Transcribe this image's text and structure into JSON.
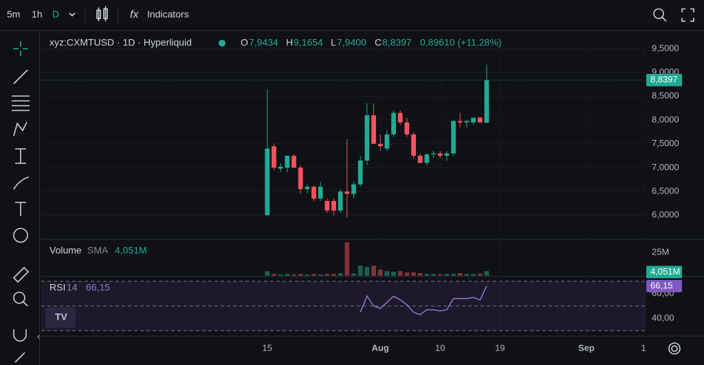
{
  "toolbar": {
    "intervals": [
      "5m",
      "1h",
      "D"
    ],
    "indicators": "Indicators"
  },
  "legend": {
    "symbol": "xyz:CXMTUSD · 1D · Hyperliquid",
    "o_key": "O",
    "o": "7,9434",
    "h_key": "H",
    "h": "9,1654",
    "l_key": "L",
    "l": "7,9400",
    "c_key": "C",
    "change": "0,89610 (+11,28%)"
  },
  "chart_data": {
    "type": "candlestick",
    "x": [
      0,
      1,
      2,
      3,
      4,
      5,
      6,
      7,
      8,
      9,
      10,
      11,
      12,
      13,
      14,
      15,
      16,
      17,
      18,
      19,
      20,
      21,
      22,
      23,
      24,
      25,
      26,
      27,
      28,
      29,
      30,
      31,
      32,
      33
    ],
    "xlim": [
      -34,
      57
    ],
    "xticks": [
      {
        "value": 0,
        "label": "15"
      },
      {
        "value": 17,
        "label": "Aug"
      },
      {
        "value": 26,
        "label": "10"
      },
      {
        "value": 35,
        "label": "19"
      },
      {
        "value": 48,
        "label": "Sep"
      },
      {
        "value": 56.6,
        "label": "1"
      }
    ],
    "open": [
      6.0,
      7.45,
      6.98,
      7.0,
      7.25,
      7.0,
      6.55,
      6.6,
      6.35,
      6.3,
      6.3,
      6.1,
      6.5,
      6.45,
      6.65,
      7.15,
      8.1,
      7.5,
      7.4,
      7.7,
      8.15,
      7.95,
      7.7,
      7.25,
      7.1,
      7.28,
      7.3,
      7.25,
      7.3,
      7.98,
      7.95,
      7.95,
      8.05,
      7.9434
    ],
    "high": [
      8.65,
      7.5,
      7.1,
      7.25,
      7.28,
      7.05,
      6.65,
      6.62,
      6.7,
      6.35,
      6.35,
      6.55,
      7.6,
      6.7,
      7.25,
      8.35,
      8.35,
      7.7,
      7.8,
      8.2,
      8.2,
      8.05,
      7.75,
      7.3,
      7.3,
      7.35,
      7.35,
      7.35,
      8.0,
      8.15,
      8.0,
      8.05,
      8.07,
      9.1654
    ],
    "low": [
      6.0,
      6.95,
      6.9,
      6.9,
      7.0,
      6.45,
      6.45,
      6.3,
      6.3,
      6.05,
      6.0,
      6.05,
      5.95,
      6.35,
      6.6,
      7.05,
      7.5,
      7.35,
      7.35,
      7.65,
      7.9,
      7.65,
      7.2,
      7.1,
      7.05,
      7.2,
      7.2,
      7.15,
      7.25,
      7.85,
      7.85,
      7.9,
      7.93,
      7.94
    ],
    "close": [
      7.4,
      7.0,
      7.02,
      7.25,
      7.0,
      6.55,
      6.6,
      6.35,
      6.6,
      6.1,
      6.1,
      6.5,
      6.45,
      6.65,
      7.15,
      8.1,
      7.5,
      7.45,
      7.7,
      8.15,
      7.95,
      7.7,
      7.25,
      7.1,
      7.28,
      7.3,
      7.25,
      7.3,
      7.98,
      7.95,
      7.98,
      8.05,
      7.95,
      8.8397
    ],
    "up_color": "#22ab94",
    "down_color": "#f7525f",
    "ylim": [
      5.55,
      9.83
    ],
    "yticks": [
      {
        "value": 9.5,
        "label": "9,5000"
      },
      {
        "value": 9.0,
        "label": "9,0000"
      },
      {
        "value": 8.5,
        "label": "8,5000"
      },
      {
        "value": 8.0,
        "label": "8,0000"
      },
      {
        "value": 7.5,
        "label": "7,5000"
      },
      {
        "value": 7.0,
        "label": "7,0000"
      },
      {
        "value": 6.5,
        "label": "6,5000"
      },
      {
        "value": 6.0,
        "label": "6,0000"
      }
    ],
    "last_price": {
      "value": 8.8397,
      "label": "8,8397"
    },
    "volume": {
      "name": "Volume",
      "sma_label": "SMA",
      "sma": {
        "value": 4.051,
        "label": "4,051M"
      },
      "values": [
        5,
        2,
        1.5,
        2,
        1.5,
        2,
        1.5,
        2,
        1.5,
        2,
        2,
        3,
        36,
        2.5,
        11,
        9.5,
        11,
        6.6,
        5,
        4.4,
        5,
        3.7,
        3.7,
        3,
        2,
        2,
        1.5,
        2,
        2,
        3,
        2,
        2,
        2.5,
        5
      ],
      "ylim": [
        0,
        36.8
      ],
      "yticks": [
        {
          "value": 25,
          "label": "25M"
        }
      ]
    },
    "rsi": {
      "name": "RSI",
      "length": 14,
      "value": {
        "value": 66.15,
        "label": "66,15"
      },
      "color": "#9575cd",
      "values": [
        null,
        null,
        null,
        null,
        null,
        null,
        null,
        null,
        null,
        null,
        null,
        null,
        null,
        null,
        45,
        58,
        50,
        48,
        53,
        58,
        55,
        51,
        45,
        43,
        47,
        47,
        46,
        47,
        56,
        56,
        56,
        57,
        55,
        66.15
      ],
      "ylim": [
        27.8,
        72.8
      ],
      "yticks": [
        {
          "value": 60,
          "label": "60,00"
        },
        {
          "value": 40,
          "label": "40,00"
        }
      ],
      "bands": [
        70,
        50,
        30
      ]
    }
  }
}
